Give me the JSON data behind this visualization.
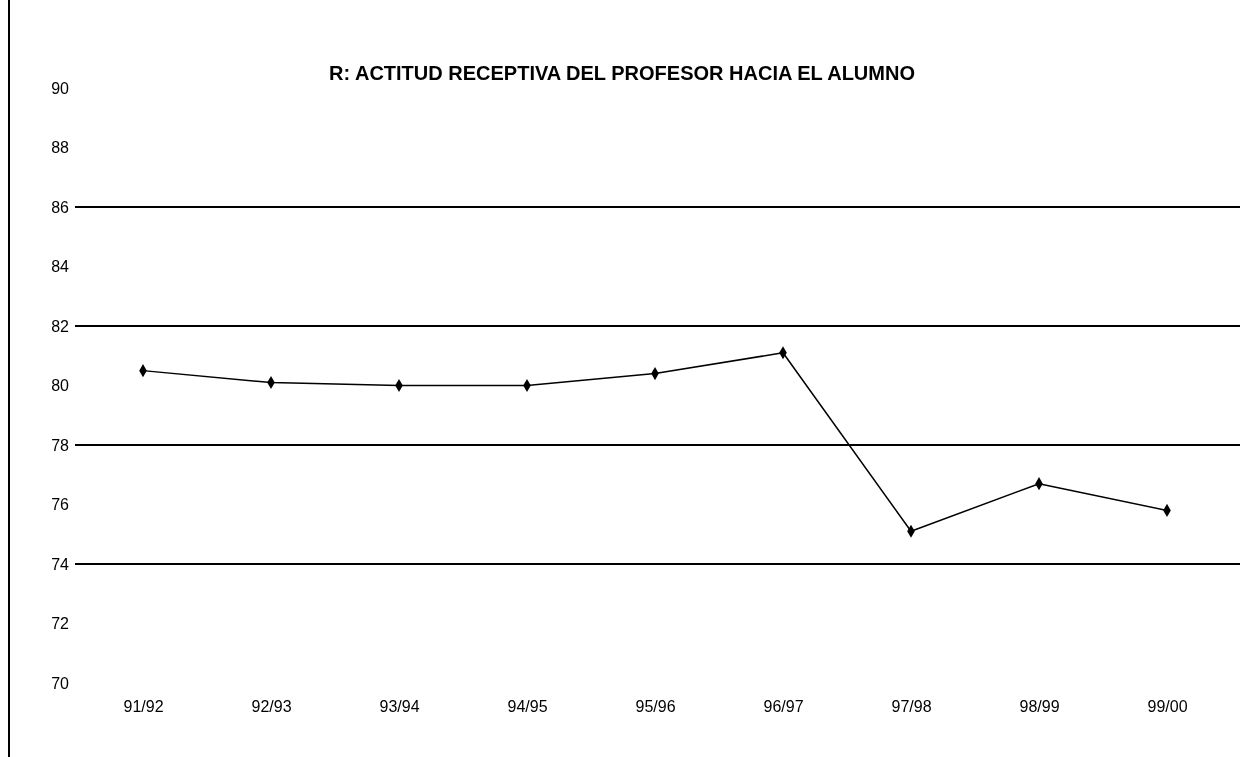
{
  "chart_data": {
    "type": "line",
    "title": "R: ACTITUD RECEPTIVA DEL PROFESOR HACIA EL ALUMNO",
    "categories": [
      "91/92",
      "92/93",
      "93/94",
      "94/95",
      "95/96",
      "96/97",
      "97/98",
      "98/99",
      "99/00"
    ],
    "values": [
      80.5,
      80.1,
      80,
      80,
      80.4,
      81.1,
      75.1,
      76.7,
      75.8
    ],
    "color": "#000000",
    "marker": "diamond",
    "line_style": "solid",
    "ylim": [
      70,
      90
    ],
    "yticks": [
      70,
      72,
      74,
      76,
      78,
      80,
      82,
      84,
      86,
      88,
      90
    ],
    "ref_lines": [
      {
        "axis": "y",
        "value": 86,
        "color": "#000000"
      },
      {
        "axis": "y",
        "value": 82,
        "color": "#000000"
      },
      {
        "axis": "y",
        "value": 78,
        "color": "#000000"
      },
      {
        "axis": "y",
        "value": 74,
        "color": "#000000"
      }
    ]
  }
}
